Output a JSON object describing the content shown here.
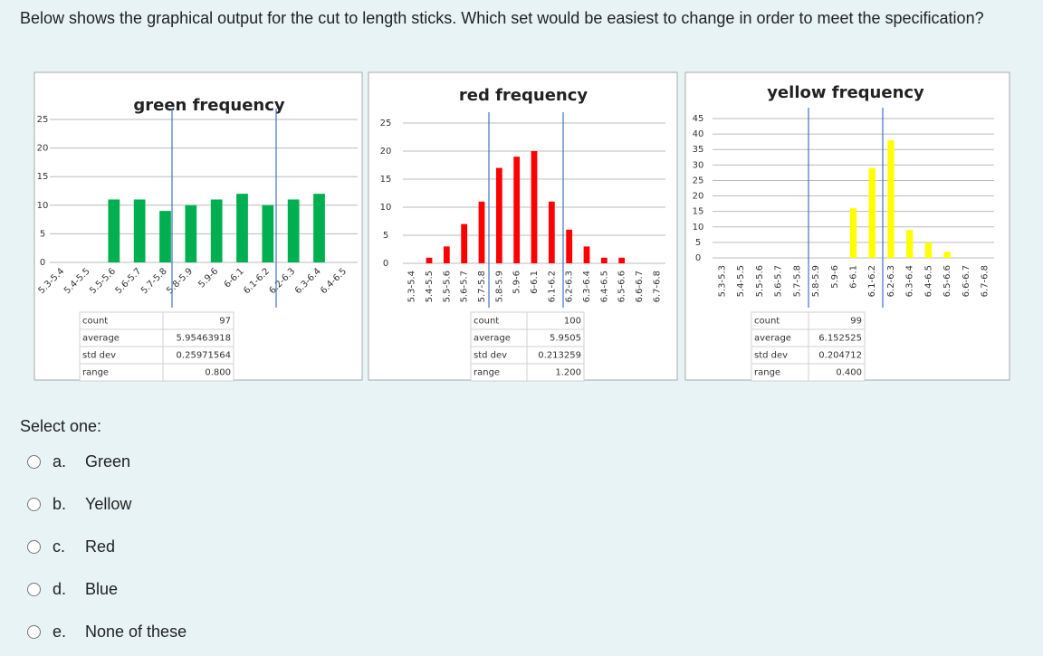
{
  "question": "Below shows the graphical output for the cut to length sticks. Which set would be easiest to change in order to meet the specification?",
  "chart_data": [
    {
      "type": "bar",
      "title": "green frequency",
      "categories": [
        "5.3-5.4",
        "5.4-5.5",
        "5.5-5.6",
        "5.6-5.7",
        "5.7-5.8",
        "5.8-5.9",
        "5.9-6",
        "6-6.1",
        "6.1-6.2",
        "6.2-6.3",
        "6.3-6.4",
        "6.4-6.5"
      ],
      "values": [
        0,
        0,
        11,
        11,
        9,
        10,
        11,
        12,
        10,
        11,
        12,
        0
      ],
      "color": "#00b050",
      "ylim": [
        0,
        25
      ],
      "yticks": [
        0,
        5,
        10,
        15,
        20,
        25
      ],
      "grid": true
    },
    {
      "type": "bar",
      "title": "red frequency",
      "categories": [
        "5.3-5.4",
        "5.4-5.5",
        "5.5-5.6",
        "5.6-5.7",
        "5.7-5.8",
        "5.8-5.9",
        "5.9-6",
        "6-6.1",
        "6.1-6.2",
        "6.2-6.3",
        "6.3-6.4",
        "6.4-6.5",
        "6.5-6.6",
        "6.6-6.7",
        "6.7-6.8"
      ],
      "values": [
        0,
        1,
        3,
        7,
        11,
        17,
        19,
        20,
        11,
        6,
        3,
        1,
        1,
        0,
        0
      ],
      "color": "#ff0000",
      "ylim": [
        0,
        25
      ],
      "yticks": [
        0,
        5,
        10,
        15,
        20,
        25
      ],
      "grid": true
    },
    {
      "type": "bar",
      "title": "yellow frequency",
      "categories": [
        "5.3-5.3",
        "5.4-5.5",
        "5.5-5.6",
        "5.6-5.7",
        "5.7-5.8",
        "5.8-5.9",
        "5.9-6",
        "6-6.1",
        "6.1-6.2",
        "6.2-6.3",
        "6.3-6.4",
        "6.4-6.5",
        "6.5-6.6",
        "6.6-6.7",
        "6.7-6.8"
      ],
      "values": [
        0,
        0,
        0,
        0,
        0,
        0,
        0,
        16,
        29,
        38,
        9,
        5,
        2,
        0,
        0
      ],
      "color": "#ffff00",
      "ylim": [
        0,
        45
      ],
      "yticks": [
        0,
        5,
        10,
        15,
        20,
        25,
        30,
        35,
        40,
        45
      ],
      "grid": true
    }
  ],
  "stats_tables": [
    {
      "rows": [
        [
          "count",
          "97"
        ],
        [
          "average",
          "5.95463918"
        ],
        [
          "std dev",
          "0.25971564"
        ],
        [
          "range",
          "0.800"
        ]
      ]
    },
    {
      "rows": [
        [
          "count",
          "100"
        ],
        [
          "average",
          "5.9505"
        ],
        [
          "std dev",
          "0.213259"
        ],
        [
          "range",
          "1.200"
        ]
      ]
    },
    {
      "rows": [
        [
          "count",
          "99"
        ],
        [
          "average",
          "6.152525"
        ],
        [
          "std dev",
          "0.204712"
        ],
        [
          "range",
          "0.400"
        ]
      ]
    }
  ],
  "select_label": "Select one:",
  "options": [
    {
      "letter": "a.",
      "text": "Green"
    },
    {
      "letter": "b.",
      "text": "Yellow"
    },
    {
      "letter": "c.",
      "text": "Red"
    },
    {
      "letter": "d.",
      "text": "Blue"
    },
    {
      "letter": "e.",
      "text": "None of these"
    }
  ]
}
